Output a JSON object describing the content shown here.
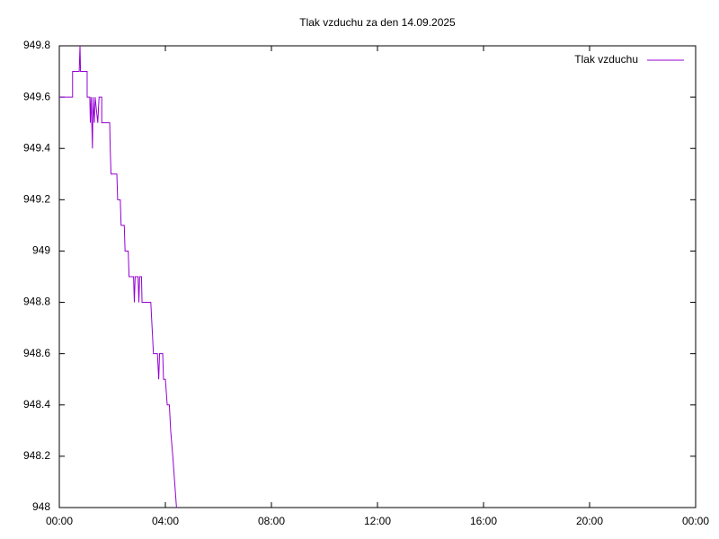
{
  "chart_data": {
    "type": "line",
    "title": "Tlak vzduchu za den 14.09.2025",
    "x": [
      0,
      0.5,
      0.5,
      0.75,
      0.78,
      0.8,
      1.05,
      1.05,
      1.15,
      1.17,
      1.2,
      1.25,
      1.27,
      1.32,
      1.35,
      1.45,
      1.5,
      1.6,
      1.6,
      1.9,
      1.92,
      1.95,
      2.17,
      2.2,
      2.3,
      2.33,
      2.45,
      2.48,
      2.6,
      2.63,
      2.8,
      2.83,
      2.86,
      2.97,
      3.0,
      3.03,
      3.1,
      3.12,
      3.45,
      3.5,
      3.55,
      3.62,
      3.7,
      3.75,
      3.78,
      3.9,
      3.93,
      4.0,
      4.07,
      4.15,
      4.2,
      4.28,
      4.35,
      4.42
    ],
    "series": [
      {
        "name": "Tlak vzduchu",
        "color": "#9400d3",
        "values": [
          949.6,
          949.6,
          949.7,
          949.7,
          949.8,
          949.7,
          949.7,
          949.6,
          949.6,
          949.5,
          949.6,
          949.4,
          949.6,
          949.5,
          949.6,
          949.5,
          949.6,
          949.6,
          949.5,
          949.5,
          949.4,
          949.3,
          949.3,
          949.2,
          949.2,
          949.1,
          949.1,
          949.0,
          949.0,
          948.9,
          948.9,
          948.8,
          948.9,
          948.9,
          948.8,
          948.9,
          948.9,
          948.8,
          948.8,
          948.7,
          948.6,
          948.6,
          948.6,
          948.5,
          948.6,
          948.6,
          948.5,
          948.5,
          948.4,
          948.4,
          948.3,
          948.2,
          948.1,
          948.0
        ]
      }
    ],
    "xlim": [
      0,
      24
    ],
    "xticks": [
      {
        "value": 0,
        "label": "00:00"
      },
      {
        "value": 4,
        "label": "04:00"
      },
      {
        "value": 8,
        "label": "08:00"
      },
      {
        "value": 12,
        "label": "12:00"
      },
      {
        "value": 16,
        "label": "16:00"
      },
      {
        "value": 20,
        "label": "20:00"
      },
      {
        "value": 24,
        "label": "00:00"
      }
    ],
    "ylim": [
      948,
      949.8
    ],
    "yticks": [
      948,
      948.2,
      948.4,
      948.6,
      948.8,
      949,
      949.2,
      949.4,
      949.6,
      949.8
    ],
    "grid": false,
    "legend": "top-right"
  }
}
